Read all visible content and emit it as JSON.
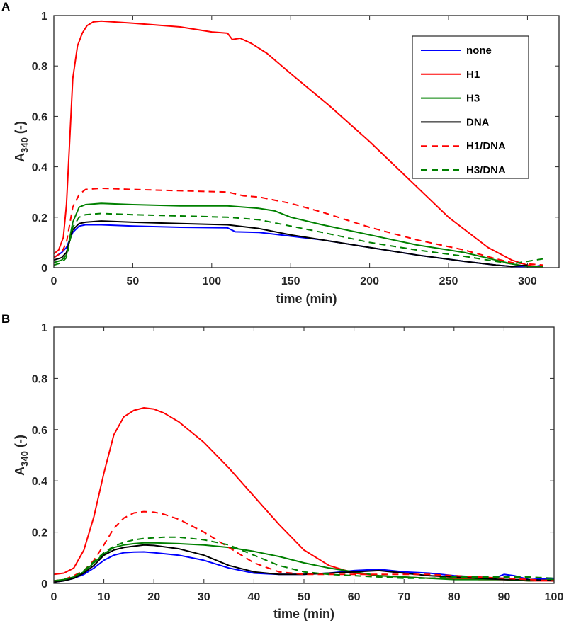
{
  "colors": {
    "none": "#0000FF",
    "H1": "#FF0000",
    "H3": "#008000",
    "DNA": "#000000",
    "axes": "#262626"
  },
  "chart_data": [
    {
      "type": "line",
      "panel_label": "A",
      "xlabel": "time (min)",
      "ylabel_main": "A",
      "ylabel_sub": "340",
      "ylabel_suffix": " (-)",
      "xlim": [
        0,
        320
      ],
      "ylim": [
        0,
        1
      ],
      "xticks": [
        0,
        50,
        100,
        150,
        200,
        250,
        300
      ],
      "yticks": [
        0,
        0.2,
        0.4,
        0.6,
        0.8,
        1
      ],
      "ytick_labels": [
        "0",
        "0.2",
        "0.4",
        "0.6",
        "0.8",
        "1"
      ],
      "grid": false,
      "legend_position": "top-right",
      "legend": [
        "none",
        "H1",
        "H3",
        "DNA",
        "H1/DNA",
        "H3/DNA"
      ],
      "series": [
        {
          "name": "none",
          "color": "#0000FF",
          "dash": "solid",
          "x": [
            0,
            5,
            8,
            12,
            16,
            20,
            30,
            50,
            80,
            110,
            115,
            130,
            150,
            170,
            200,
            230,
            260,
            280,
            290,
            300,
            305,
            310
          ],
          "y": [
            0.04,
            0.06,
            0.08,
            0.14,
            0.165,
            0.17,
            0.17,
            0.165,
            0.16,
            0.158,
            0.142,
            0.14,
            0.125,
            0.11,
            0.08,
            0.05,
            0.025,
            0.01,
            0.005,
            0.005,
            0.005,
            0.01
          ]
        },
        {
          "name": "H1",
          "color": "#FF0000",
          "dash": "solid",
          "x": [
            0,
            3,
            6,
            8,
            10,
            12,
            15,
            18,
            21,
            25,
            30,
            50,
            80,
            100,
            110,
            113,
            118,
            125,
            135,
            150,
            175,
            200,
            225,
            250,
            275,
            290,
            300,
            305,
            310
          ],
          "y": [
            0.055,
            0.07,
            0.12,
            0.25,
            0.5,
            0.75,
            0.88,
            0.93,
            0.96,
            0.975,
            0.978,
            0.97,
            0.955,
            0.935,
            0.93,
            0.905,
            0.91,
            0.89,
            0.85,
            0.77,
            0.64,
            0.5,
            0.35,
            0.2,
            0.08,
            0.03,
            0.01,
            0.005,
            0.005
          ]
        },
        {
          "name": "H3",
          "color": "#008000",
          "dash": "solid",
          "x": [
            0,
            5,
            8,
            12,
            16,
            20,
            30,
            50,
            80,
            110,
            130,
            140,
            150,
            170,
            200,
            230,
            260,
            280,
            290,
            300,
            310
          ],
          "y": [
            0.02,
            0.03,
            0.05,
            0.18,
            0.24,
            0.25,
            0.255,
            0.25,
            0.245,
            0.245,
            0.235,
            0.225,
            0.2,
            0.17,
            0.13,
            0.09,
            0.06,
            0.03,
            0.015,
            0.005,
            0.005
          ]
        },
        {
          "name": "DNA",
          "color": "#000000",
          "dash": "solid",
          "x": [
            0,
            5,
            8,
            12,
            16,
            20,
            30,
            50,
            80,
            110,
            130,
            150,
            170,
            200,
            230,
            260,
            280,
            290,
            300
          ],
          "y": [
            0.03,
            0.04,
            0.06,
            0.15,
            0.175,
            0.18,
            0.185,
            0.18,
            0.175,
            0.17,
            0.155,
            0.13,
            0.11,
            0.08,
            0.05,
            0.025,
            0.01,
            0.005,
            0.01
          ]
        },
        {
          "name": "H1/DNA",
          "color": "#FF0000",
          "dash": "dashed",
          "x": [
            0,
            5,
            8,
            12,
            16,
            20,
            30,
            50,
            80,
            110,
            120,
            130,
            150,
            170,
            200,
            230,
            260,
            280,
            290,
            300,
            310
          ],
          "y": [
            0.04,
            0.06,
            0.1,
            0.24,
            0.29,
            0.31,
            0.315,
            0.31,
            0.305,
            0.3,
            0.285,
            0.28,
            0.255,
            0.22,
            0.16,
            0.11,
            0.07,
            0.035,
            0.02,
            0.015,
            0.01
          ]
        },
        {
          "name": "H3/DNA",
          "color": "#008000",
          "dash": "dashed",
          "x": [
            0,
            5,
            8,
            12,
            16,
            20,
            30,
            50,
            80,
            110,
            130,
            150,
            170,
            200,
            230,
            260,
            280,
            290,
            300,
            310
          ],
          "y": [
            0.01,
            0.02,
            0.04,
            0.16,
            0.2,
            0.21,
            0.215,
            0.21,
            0.205,
            0.2,
            0.19,
            0.165,
            0.14,
            0.1,
            0.07,
            0.045,
            0.025,
            0.015,
            0.025,
            0.035
          ]
        }
      ]
    },
    {
      "type": "line",
      "panel_label": "B",
      "xlabel": "time (min)",
      "ylabel_main": "A",
      "ylabel_sub": "340",
      "ylabel_suffix": " (-)",
      "xlim": [
        0,
        100
      ],
      "ylim": [
        0,
        1
      ],
      "xticks": [
        0,
        10,
        20,
        30,
        40,
        50,
        60,
        70,
        80,
        90,
        100
      ],
      "yticks": [
        0,
        0.2,
        0.4,
        0.6,
        0.8,
        1
      ],
      "ytick_labels": [
        "0",
        "0.2",
        "0.4",
        "0.6",
        "0.8",
        "1"
      ],
      "grid": false,
      "series": [
        {
          "name": "none",
          "color": "#0000FF",
          "dash": "solid",
          "x": [
            0,
            2,
            4,
            6,
            8,
            10,
            12,
            14,
            16,
            18,
            20,
            25,
            30,
            35,
            40,
            45,
            50,
            55,
            60,
            65,
            70,
            75,
            80,
            85,
            88,
            90,
            92,
            95,
            100
          ],
          "y": [
            0.005,
            0.01,
            0.02,
            0.035,
            0.06,
            0.09,
            0.11,
            0.12,
            0.122,
            0.123,
            0.12,
            0.11,
            0.09,
            0.06,
            0.04,
            0.035,
            0.035,
            0.04,
            0.05,
            0.055,
            0.045,
            0.04,
            0.03,
            0.025,
            0.02,
            0.035,
            0.03,
            0.015,
            0.02
          ]
        },
        {
          "name": "H1",
          "color": "#FF0000",
          "dash": "solid",
          "x": [
            0,
            2,
            4,
            6,
            8,
            10,
            12,
            14,
            16,
            18,
            20,
            22,
            25,
            30,
            35,
            40,
            45,
            50,
            55,
            60,
            65,
            70,
            75,
            80,
            85,
            90,
            95,
            100
          ],
          "y": [
            0.035,
            0.04,
            0.06,
            0.13,
            0.26,
            0.43,
            0.58,
            0.65,
            0.675,
            0.685,
            0.68,
            0.665,
            0.63,
            0.55,
            0.45,
            0.34,
            0.23,
            0.13,
            0.07,
            0.04,
            0.03,
            0.025,
            0.02,
            0.02,
            0.015,
            0.015,
            0.01,
            0.01
          ]
        },
        {
          "name": "H3",
          "color": "#008000",
          "dash": "solid",
          "x": [
            0,
            2,
            4,
            6,
            8,
            10,
            12,
            14,
            16,
            18,
            20,
            25,
            30,
            35,
            40,
            45,
            50,
            55,
            60,
            65,
            70,
            75,
            80,
            85,
            90,
            95,
            100
          ],
          "y": [
            0.01,
            0.015,
            0.025,
            0.045,
            0.08,
            0.115,
            0.14,
            0.15,
            0.155,
            0.158,
            0.158,
            0.155,
            0.15,
            0.14,
            0.125,
            0.105,
            0.08,
            0.06,
            0.045,
            0.03,
            0.025,
            0.02,
            0.015,
            0.015,
            0.015,
            0.01,
            0.015
          ]
        },
        {
          "name": "DNA",
          "color": "#000000",
          "dash": "solid",
          "x": [
            0,
            2,
            4,
            6,
            8,
            10,
            12,
            14,
            16,
            18,
            20,
            25,
            30,
            35,
            40,
            45,
            50,
            55,
            60,
            65,
            70,
            75,
            80,
            85,
            90,
            95,
            100
          ],
          "y": [
            0.005,
            0.01,
            0.02,
            0.04,
            0.07,
            0.11,
            0.13,
            0.14,
            0.145,
            0.15,
            0.148,
            0.135,
            0.11,
            0.07,
            0.045,
            0.035,
            0.035,
            0.04,
            0.045,
            0.05,
            0.04,
            0.03,
            0.025,
            0.02,
            0.015,
            0.015,
            0.01
          ]
        },
        {
          "name": "H1/DNA",
          "color": "#FF0000",
          "dash": "dashed",
          "x": [
            0,
            2,
            4,
            6,
            8,
            10,
            12,
            14,
            16,
            18,
            20,
            22,
            25,
            30,
            35,
            40,
            45,
            50,
            55,
            60,
            65,
            70,
            75,
            80,
            85,
            90,
            95,
            100
          ],
          "y": [
            0.01,
            0.015,
            0.03,
            0.05,
            0.09,
            0.15,
            0.215,
            0.255,
            0.275,
            0.28,
            0.278,
            0.27,
            0.25,
            0.2,
            0.14,
            0.08,
            0.045,
            0.035,
            0.035,
            0.035,
            0.035,
            0.035,
            0.035,
            0.03,
            0.025,
            0.02,
            0.015,
            0.01
          ]
        },
        {
          "name": "H3/DNA",
          "color": "#008000",
          "dash": "dashed",
          "x": [
            0,
            2,
            4,
            6,
            8,
            10,
            12,
            14,
            16,
            18,
            20,
            22,
            25,
            30,
            35,
            40,
            45,
            50,
            55,
            60,
            65,
            70,
            75,
            80,
            85,
            90,
            95,
            100
          ],
          "y": [
            0.01,
            0.015,
            0.025,
            0.05,
            0.085,
            0.12,
            0.145,
            0.16,
            0.17,
            0.175,
            0.178,
            0.18,
            0.18,
            0.17,
            0.15,
            0.11,
            0.07,
            0.045,
            0.035,
            0.03,
            0.025,
            0.02,
            0.02,
            0.025,
            0.025,
            0.025,
            0.025,
            0.02
          ]
        }
      ]
    }
  ]
}
